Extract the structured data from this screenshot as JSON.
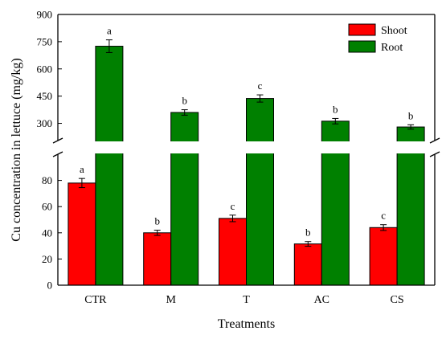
{
  "chart_data": {
    "type": "bar",
    "xlabel": "Treatments",
    "ylabel": "Cu concentration in lettuce (mg/kg)",
    "categories": [
      "CTR",
      "M",
      "T",
      "AC",
      "CS"
    ],
    "series": [
      {
        "name": "Shoot",
        "color": "#ff0000",
        "values": [
          78,
          40,
          51,
          31.5,
          44
        ],
        "errors": [
          3.5,
          2,
          2.5,
          1.8,
          2.2
        ],
        "significance": [
          "a",
          "b",
          "c",
          "b",
          "c"
        ]
      },
      {
        "name": "Root",
        "color": "#008000",
        "values": [
          725,
          360,
          437,
          312,
          280
        ],
        "errors": [
          35,
          15,
          20,
          15,
          12
        ],
        "significance": [
          "a",
          "b",
          "c",
          "b",
          "b"
        ]
      }
    ],
    "y_axis": {
      "broken": true,
      "lower_range": [
        0,
        100
      ],
      "lower_ticks": [
        "0",
        "20",
        "40",
        "60",
        "80"
      ],
      "upper_range": [
        205,
        900
      ],
      "upper_ticks": [
        "300",
        "450",
        "600",
        "750",
        "900"
      ]
    },
    "legend_position": "top-right",
    "grid": false
  }
}
